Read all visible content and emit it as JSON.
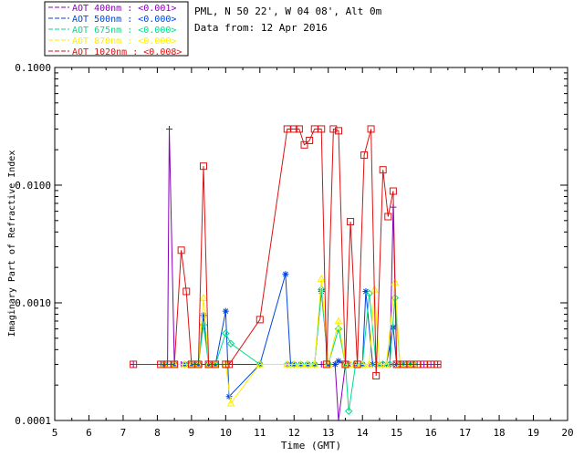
{
  "chart_data": {
    "type": "line",
    "title": "PML, N 50 22', W 04 08', Alt 0m",
    "subtitle": "Data from: 12 Apr 2016",
    "xlabel": "Time (GMT)",
    "ylabel": "Imaginary Part of Refractive Index",
    "xlim": [
      5,
      20
    ],
    "ylim": [
      0.0001,
      0.1
    ],
    "yscale": "log",
    "x_ticks": [
      "5",
      "6",
      "7",
      "8",
      "9",
      "10",
      "11",
      "12",
      "13",
      "14",
      "15",
      "16",
      "17",
      "18",
      "19",
      "20"
    ],
    "y_ticks": [
      "0.0001",
      "0.0010",
      "0.0100",
      "0.1000"
    ],
    "y_tick_values": [
      0.0001,
      0.001,
      0.01,
      0.1
    ],
    "legend": {
      "placement": "top-left, above plot",
      "entries": [
        {
          "label": "AOT  400nm : <0.001>",
          "color": "#8800bb"
        },
        {
          "label": "AOT  500nm : <0.000>",
          "color": "#0044dd"
        },
        {
          "label": "AOT  675nm : <0.000>",
          "color": "#00dd88"
        },
        {
          "label": "AOT  870nm : <0.000>",
          "color": "#ffee00"
        },
        {
          "label": "AOT 1020nm : <0.008>",
          "color": "#dd1111"
        }
      ]
    },
    "series": [
      {
        "name": "AOT 400nm",
        "color": "#8800bb",
        "marker": "plus",
        "x": [
          7.3,
          8.1,
          8.2,
          8.3,
          8.35,
          8.5,
          8.7,
          8.9,
          9.1,
          9.3,
          9.5,
          9.7,
          10.1,
          11.0,
          11.8,
          12.0,
          12.2,
          12.4,
          12.6,
          12.8,
          13.0,
          13.2,
          13.3,
          13.5,
          13.6,
          13.8,
          14.0,
          14.2,
          14.4,
          14.6,
          14.8,
          14.9,
          15.0,
          15.2,
          15.4,
          15.6,
          15.8,
          16.0,
          16.2
        ],
        "y": [
          0.0003,
          0.0003,
          0.0003,
          0.0003,
          0.03,
          0.0003,
          0.0003,
          0.0003,
          0.0003,
          0.0003,
          0.0003,
          0.0003,
          0.0003,
          0.0003,
          0.0003,
          0.0003,
          0.0003,
          0.0003,
          0.0003,
          0.0003,
          0.0003,
          0.0003,
          0.0001,
          0.0003,
          0.0003,
          0.0003,
          0.0003,
          0.0003,
          0.0003,
          0.0003,
          0.0003,
          0.0065,
          0.0003,
          0.0003,
          0.0003,
          0.0003,
          0.0003,
          0.0003,
          0.0003
        ]
      },
      {
        "name": "AOT 500nm",
        "color": "#0044dd",
        "marker": "asterisk",
        "x": [
          8.2,
          8.5,
          8.8,
          9.0,
          9.2,
          9.35,
          9.5,
          9.7,
          10.0,
          10.1,
          11.0,
          11.75,
          11.9,
          12.0,
          12.2,
          12.4,
          12.6,
          12.8,
          13.0,
          13.2,
          13.3,
          13.5,
          13.6,
          13.8,
          14.0,
          14.1,
          14.3,
          14.5,
          14.7,
          14.9,
          15.0,
          15.2,
          15.4
        ],
        "y": [
          0.0003,
          0.0003,
          0.0003,
          0.0003,
          0.0003,
          0.00078,
          0.0003,
          0.0003,
          0.00085,
          0.00016,
          0.0003,
          0.00175,
          0.0003,
          0.0003,
          0.0003,
          0.0003,
          0.0003,
          0.00125,
          0.0003,
          0.0003,
          0.00032,
          0.0003,
          0.0003,
          0.0003,
          0.0003,
          0.00125,
          0.0003,
          0.0003,
          0.0003,
          0.00062,
          0.0003,
          0.0003,
          0.0003
        ]
      },
      {
        "name": "AOT 675nm",
        "color": "#00dd88",
        "marker": "diamond",
        "x": [
          8.2,
          8.5,
          8.8,
          9.0,
          9.2,
          9.35,
          9.5,
          9.7,
          10.0,
          10.15,
          11.0,
          11.8,
          12.0,
          12.2,
          12.4,
          12.6,
          12.8,
          13.0,
          13.3,
          13.5,
          13.6,
          13.8,
          14.0,
          14.2,
          14.4,
          14.6,
          14.8,
          14.95,
          15.1,
          15.3,
          15.5
        ],
        "y": [
          0.0003,
          0.0003,
          0.0003,
          0.0003,
          0.0003,
          0.00065,
          0.0003,
          0.0003,
          0.00055,
          0.00045,
          0.0003,
          0.0003,
          0.0003,
          0.0003,
          0.0003,
          0.0003,
          0.0013,
          0.0003,
          0.0006,
          0.0003,
          0.00012,
          0.0003,
          0.0003,
          0.0012,
          0.0003,
          0.0003,
          0.0003,
          0.0011,
          0.0003,
          0.0003,
          0.0003
        ]
      },
      {
        "name": "AOT 870nm",
        "color": "#ffee00",
        "marker": "triangle",
        "x": [
          8.2,
          8.5,
          8.8,
          9.0,
          9.2,
          9.35,
          9.5,
          9.7,
          10.0,
          10.15,
          11.0,
          11.8,
          12.0,
          12.2,
          12.4,
          12.6,
          12.8,
          13.0,
          13.3,
          13.5,
          13.65,
          13.8,
          14.0,
          14.2,
          14.35,
          14.5,
          14.7,
          14.95,
          15.1,
          15.3,
          15.5
        ],
        "y": [
          0.0003,
          0.0003,
          0.0003,
          0.0003,
          0.0003,
          0.0011,
          0.0003,
          0.0003,
          0.0003,
          0.00014,
          0.0003,
          0.0003,
          0.0003,
          0.0003,
          0.0003,
          0.0003,
          0.0016,
          0.0003,
          0.0007,
          0.0003,
          0.0003,
          0.0003,
          0.0003,
          0.0003,
          0.0013,
          0.0003,
          0.0003,
          0.0015,
          0.0003,
          0.0003,
          0.0003
        ]
      },
      {
        "name": "AOT 1020nm",
        "color": "#dd1111",
        "marker": "square",
        "x": [
          7.3,
          8.1,
          8.3,
          8.5,
          8.7,
          8.85,
          9.0,
          9.2,
          9.35,
          9.5,
          9.7,
          10.0,
          10.1,
          11.0,
          11.8,
          12.0,
          12.15,
          12.3,
          12.45,
          12.6,
          12.8,
          12.95,
          13.15,
          13.3,
          13.5,
          13.65,
          13.85,
          14.05,
          14.25,
          14.4,
          14.6,
          14.75,
          14.9,
          15.0,
          15.2,
          15.4,
          15.6,
          15.8,
          16.0,
          16.2
        ],
        "y": [
          0.0003,
          0.0003,
          0.0003,
          0.0003,
          0.0028,
          0.00125,
          0.0003,
          0.0003,
          0.0145,
          0.0003,
          0.0003,
          0.0003,
          0.0003,
          0.00072,
          0.03,
          0.03,
          0.03,
          0.022,
          0.024,
          0.03,
          0.03,
          0.0003,
          0.03,
          0.029,
          0.0003,
          0.0049,
          0.0003,
          0.018,
          0.03,
          0.00024,
          0.0135,
          0.0054,
          0.0089,
          0.0003,
          0.0003,
          0.0003,
          0.0003,
          0.0003,
          0.0003,
          0.0003
        ]
      }
    ]
  }
}
